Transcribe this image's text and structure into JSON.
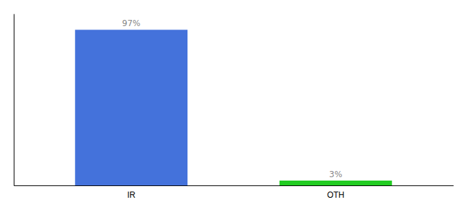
{
  "chart_data": {
    "type": "bar",
    "categories": [
      "IR",
      "OTH"
    ],
    "values": [
      97,
      3
    ],
    "value_labels": [
      "97%",
      "3%"
    ],
    "colors": [
      "#4472db",
      "#22cc22"
    ],
    "ylim": [
      0,
      107
    ],
    "data_labels": true,
    "grid": false,
    "tick_labels": "x"
  }
}
